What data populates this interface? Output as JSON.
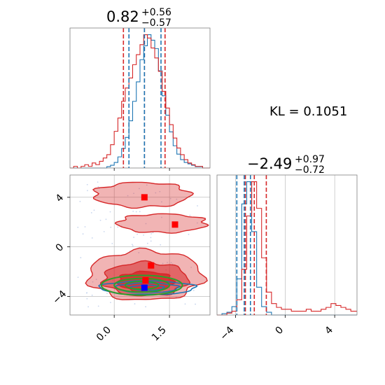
{
  "kl_label": "KL = 0.1051",
  "colors": {
    "red": "#d62728",
    "blue": "#1f77b4",
    "green": "#2ca02c",
    "grid": "#b0b0b0"
  },
  "chart_data": [
    {
      "panel": "marginal-x",
      "type": "step-histogram",
      "title": {
        "value": "0.82",
        "plus": "+0.56",
        "minus": "−0.57"
      },
      "xlim": [
        -1.2,
        2.6
      ],
      "quantile_lines": {
        "red": [
          0.25,
          0.82,
          1.38
        ],
        "blue": [
          0.4,
          0.82,
          1.27
        ]
      },
      "series": [
        {
          "color": "blue",
          "bins": [
            -1.2,
            -1.1,
            -1.0,
            -0.9,
            -0.8,
            -0.7,
            -0.6,
            -0.5,
            -0.4,
            -0.3,
            -0.2,
            -0.1,
            0.0,
            0.1,
            0.2,
            0.3,
            0.4,
            0.5,
            0.6,
            0.7,
            0.8,
            0.9,
            1.0,
            1.1,
            1.2,
            1.3,
            1.4,
            1.5,
            1.6,
            1.7,
            1.8,
            1.9,
            2.0,
            2.1,
            2.2,
            2.3,
            2.4,
            2.5,
            2.6
          ],
          "counts": [
            0,
            0,
            0,
            0,
            0,
            0,
            0,
            0,
            0,
            0,
            1,
            2,
            4,
            8,
            14,
            22,
            34,
            48,
            62,
            78,
            88,
            96,
            92,
            86,
            70,
            52,
            38,
            26,
            16,
            10,
            6,
            4,
            3,
            2,
            1,
            1,
            0,
            0
          ]
        },
        {
          "color": "red",
          "bins": [
            -1.2,
            -1.1,
            -1.0,
            -0.9,
            -0.8,
            -0.7,
            -0.6,
            -0.5,
            -0.4,
            -0.3,
            -0.2,
            -0.1,
            0.0,
            0.1,
            0.2,
            0.3,
            0.4,
            0.5,
            0.6,
            0.7,
            0.8,
            0.9,
            1.0,
            1.1,
            1.2,
            1.3,
            1.4,
            1.5,
            1.6,
            1.7,
            1.8,
            1.9,
            2.0,
            2.1,
            2.2,
            2.3,
            2.4,
            2.5,
            2.6
          ],
          "counts": [
            0,
            1,
            0,
            1,
            2,
            1,
            3,
            2,
            4,
            6,
            8,
            14,
            22,
            30,
            40,
            48,
            54,
            62,
            68,
            74,
            80,
            78,
            72,
            66,
            58,
            46,
            36,
            26,
            18,
            12,
            8,
            5,
            3,
            2,
            1,
            1,
            0,
            0
          ]
        }
      ]
    },
    {
      "panel": "joint",
      "type": "contour-2d",
      "x_ticks": [
        "0.0",
        "1.5"
      ],
      "x_tick_values": [
        0.0,
        1.5
      ],
      "y_ticks": [
        "4",
        "0",
        "−4"
      ],
      "y_tick_values": [
        4,
        0,
        -4
      ],
      "xlim": [
        -1.2,
        2.6
      ],
      "ylim": [
        -5.5,
        5.8
      ],
      "red_square_markers": [
        {
          "x": 0.82,
          "y": 4.0
        },
        {
          "x": 1.65,
          "y": 1.8
        },
        {
          "x": 1.0,
          "y": -1.5
        },
        {
          "x": 0.85,
          "y": -2.7
        }
      ],
      "blue_square_markers": [
        {
          "x": 0.82,
          "y": -3.3
        }
      ],
      "red_regions": [
        {
          "cx": 0.85,
          "cy": -2.3,
          "rx": 1.55,
          "ry": 2.0,
          "level": 1
        },
        {
          "cx": 0.85,
          "cy": -2.6,
          "rx": 1.15,
          "ry": 1.35,
          "level": 2
        },
        {
          "cx": 0.85,
          "cy": -2.8,
          "rx": 0.75,
          "ry": 0.8,
          "level": 3
        },
        {
          "cx": 0.75,
          "cy": 4.2,
          "rx": 1.3,
          "ry": 1.0,
          "level": 1
        },
        {
          "cx": 1.3,
          "cy": 1.9,
          "rx": 1.2,
          "ry": 0.75,
          "level": 1
        }
      ],
      "green_contours": [
        {
          "cx": 0.75,
          "cy": -3.1,
          "rx": 1.1,
          "ry": 0.8
        },
        {
          "cx": 0.75,
          "cy": -3.1,
          "rx": 0.75,
          "ry": 0.55
        },
        {
          "cx": 0.75,
          "cy": -3.1,
          "rx": 0.45,
          "ry": 0.32
        }
      ],
      "blue_contours": [
        {
          "cx": 0.9,
          "cy": -3.3,
          "rx": 1.3,
          "ry": 0.55
        },
        {
          "cx": 0.9,
          "cy": -3.3,
          "rx": 0.85,
          "ry": 0.38
        },
        {
          "cx": 0.9,
          "cy": -3.3,
          "rx": 0.45,
          "ry": 0.2
        }
      ]
    },
    {
      "panel": "marginal-y",
      "type": "step-histogram",
      "title": {
        "value": "−2.49",
        "plus": "+0.97",
        "minus": "−0.72"
      },
      "x_ticks": [
        "−4",
        "0",
        "4"
      ],
      "x_tick_values": [
        -4,
        0,
        4
      ],
      "xlim": [
        -5.5,
        5.8
      ],
      "quantile_lines": {
        "red": [
          -3.21,
          -2.49,
          -1.52
        ],
        "blue": [
          -3.9,
          -3.3,
          -2.8
        ]
      },
      "series": [
        {
          "color": "blue",
          "bins": [
            -5.5,
            -5.1,
            -4.7,
            -4.3,
            -3.9,
            -3.5,
            -3.1,
            -2.7,
            -2.3,
            -1.9,
            -1.5,
            -1.1,
            -0.7,
            -0.3,
            0.1,
            0.5,
            0.9,
            1.3,
            1.7,
            2.1,
            2.5,
            2.9,
            3.3,
            3.7,
            4.1,
            4.5,
            4.9,
            5.3,
            5.8
          ],
          "counts": [
            0,
            1,
            2,
            6,
            26,
            80,
            96,
            60,
            20,
            6,
            2,
            0,
            0,
            0,
            0,
            0,
            0,
            0,
            0,
            0,
            0,
            0,
            0,
            0,
            0,
            0,
            0,
            0
          ]
        },
        {
          "color": "red",
          "bins": [
            -5.5,
            -5.1,
            -4.7,
            -4.3,
            -3.9,
            -3.5,
            -3.1,
            -2.7,
            -2.3,
            -1.9,
            -1.5,
            -1.1,
            -0.7,
            -0.3,
            0.1,
            0.5,
            0.9,
            1.3,
            1.7,
            2.1,
            2.5,
            2.9,
            3.3,
            3.7,
            4.1,
            4.5,
            4.9,
            5.3,
            5.8
          ],
          "counts": [
            0,
            0,
            1,
            2,
            8,
            24,
            52,
            70,
            56,
            30,
            12,
            6,
            4,
            3,
            3,
            2,
            2,
            2,
            3,
            2,
            2,
            3,
            4,
            6,
            5,
            4,
            3,
            2
          ]
        }
      ]
    }
  ]
}
